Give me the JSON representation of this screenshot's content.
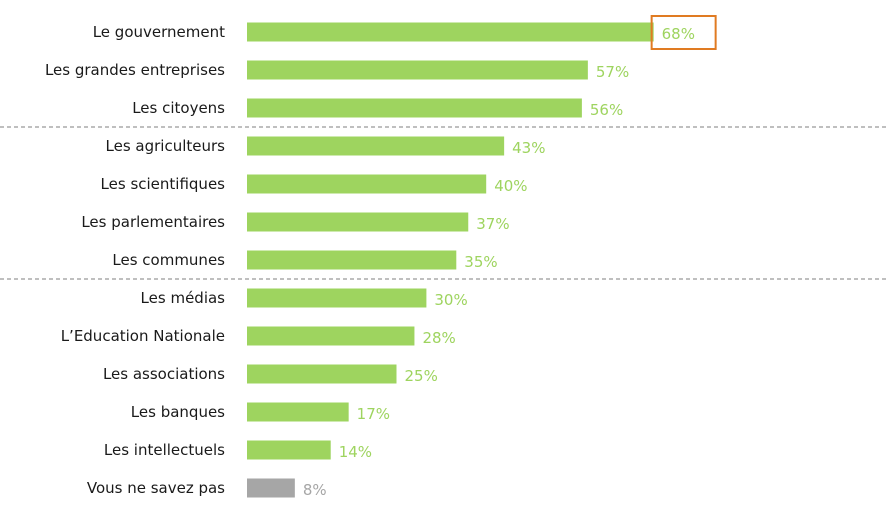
{
  "chart_data": {
    "type": "bar",
    "orientation": "horizontal",
    "categories": [
      "Le gouvernement",
      "Les grandes entreprises",
      "Les citoyens",
      "Les agriculteurs",
      "Les scientifiques",
      "Les parlementaires",
      "Les communes",
      "Les médias",
      "L’Education Nationale",
      "Les associations",
      "Les banques",
      "Les intellectuels",
      "Vous ne savez pas"
    ],
    "values": [
      68,
      57,
      56,
      43,
      40,
      37,
      35,
      30,
      28,
      25,
      17,
      14,
      8
    ],
    "value_labels": [
      "68%",
      "57%",
      "56%",
      "43%",
      "40%",
      "37%",
      "35%",
      "30%",
      "28%",
      "25%",
      "17%",
      "14%",
      "8%"
    ],
    "xlim": [
      0,
      100
    ],
    "grid": false,
    "legend": "none",
    "group_separators_after_index": [
      2,
      6
    ],
    "highlighted_index": 0,
    "colors": {
      "bar": "#9ed45f",
      "bar_muted": "#a6a6a6",
      "label": "#9ed45f",
      "label_muted": "#a6a6a6",
      "highlight_box": "#e07b22",
      "separator": "#7f7f7f",
      "category_text": "#1a1a1a"
    },
    "muted_index": 12
  }
}
